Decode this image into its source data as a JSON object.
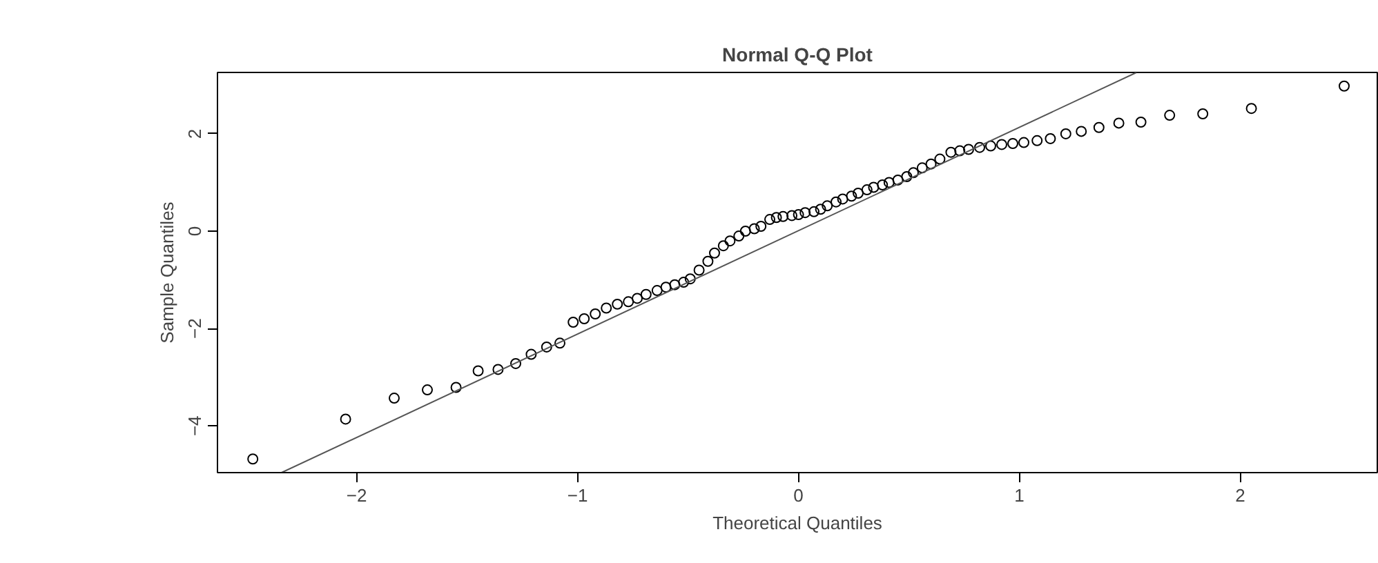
{
  "chart_data": {
    "type": "scatter",
    "title": "Normal Q-Q Plot",
    "xlabel": "Theoretical Quantiles",
    "ylabel": "Sample Quantiles",
    "grid": false,
    "xlim": [
      -2.63,
      2.62
    ],
    "ylim": [
      -4.96,
      3.26
    ],
    "xticks": [
      -2,
      -1,
      0,
      1,
      2
    ],
    "yticks": [
      -4,
      -2,
      0,
      2
    ],
    "series": [
      {
        "marker": "circle",
        "color": "#000000",
        "x": [
          -2.47,
          -2.05,
          -1.83,
          -1.68,
          -1.55,
          -1.45,
          -1.36,
          -1.28,
          -1.21,
          -1.14,
          -1.08,
          -1.02,
          -0.97,
          -0.92,
          -0.87,
          -0.82,
          -0.77,
          -0.73,
          -0.69,
          -0.64,
          -0.6,
          -0.56,
          -0.52,
          -0.49,
          -0.45,
          -0.41,
          -0.38,
          -0.34,
          -0.31,
          -0.27,
          -0.24,
          -0.2,
          -0.17,
          -0.13,
          -0.1,
          -0.07,
          -0.03,
          0.0,
          0.03,
          0.07,
          0.1,
          0.13,
          0.17,
          0.2,
          0.24,
          0.27,
          0.31,
          0.34,
          0.38,
          0.41,
          0.45,
          0.49,
          0.52,
          0.56,
          0.6,
          0.64,
          0.69,
          0.73,
          0.77,
          0.82,
          0.87,
          0.92,
          0.97,
          1.02,
          1.08,
          1.14,
          1.21,
          1.28,
          1.36,
          1.45,
          1.55,
          1.68,
          1.83,
          2.05,
          2.47
        ],
        "values": [
          -4.68,
          -3.86,
          -3.43,
          -3.26,
          -3.21,
          -2.87,
          -2.84,
          -2.72,
          -2.53,
          -2.38,
          -2.3,
          -1.87,
          -1.8,
          -1.7,
          -1.58,
          -1.5,
          -1.45,
          -1.38,
          -1.3,
          -1.22,
          -1.15,
          -1.1,
          -1.05,
          -0.98,
          -0.8,
          -0.62,
          -0.45,
          -0.3,
          -0.2,
          -0.1,
          0.0,
          0.05,
          0.1,
          0.24,
          0.28,
          0.3,
          0.32,
          0.34,
          0.38,
          0.4,
          0.45,
          0.52,
          0.6,
          0.66,
          0.72,
          0.78,
          0.85,
          0.9,
          0.95,
          1.0,
          1.05,
          1.12,
          1.2,
          1.3,
          1.38,
          1.48,
          1.62,
          1.65,
          1.68,
          1.72,
          1.75,
          1.78,
          1.8,
          1.82,
          1.86,
          1.9,
          2.0,
          2.05,
          2.13,
          2.22,
          2.24,
          2.38,
          2.41,
          2.52,
          2.98
        ]
      },
      {
        "type": "line",
        "marker": "none",
        "color": "#555555",
        "x": [
          -2.34,
          1.53
        ],
        "values": [
          -4.96,
          3.26
        ]
      }
    ]
  }
}
